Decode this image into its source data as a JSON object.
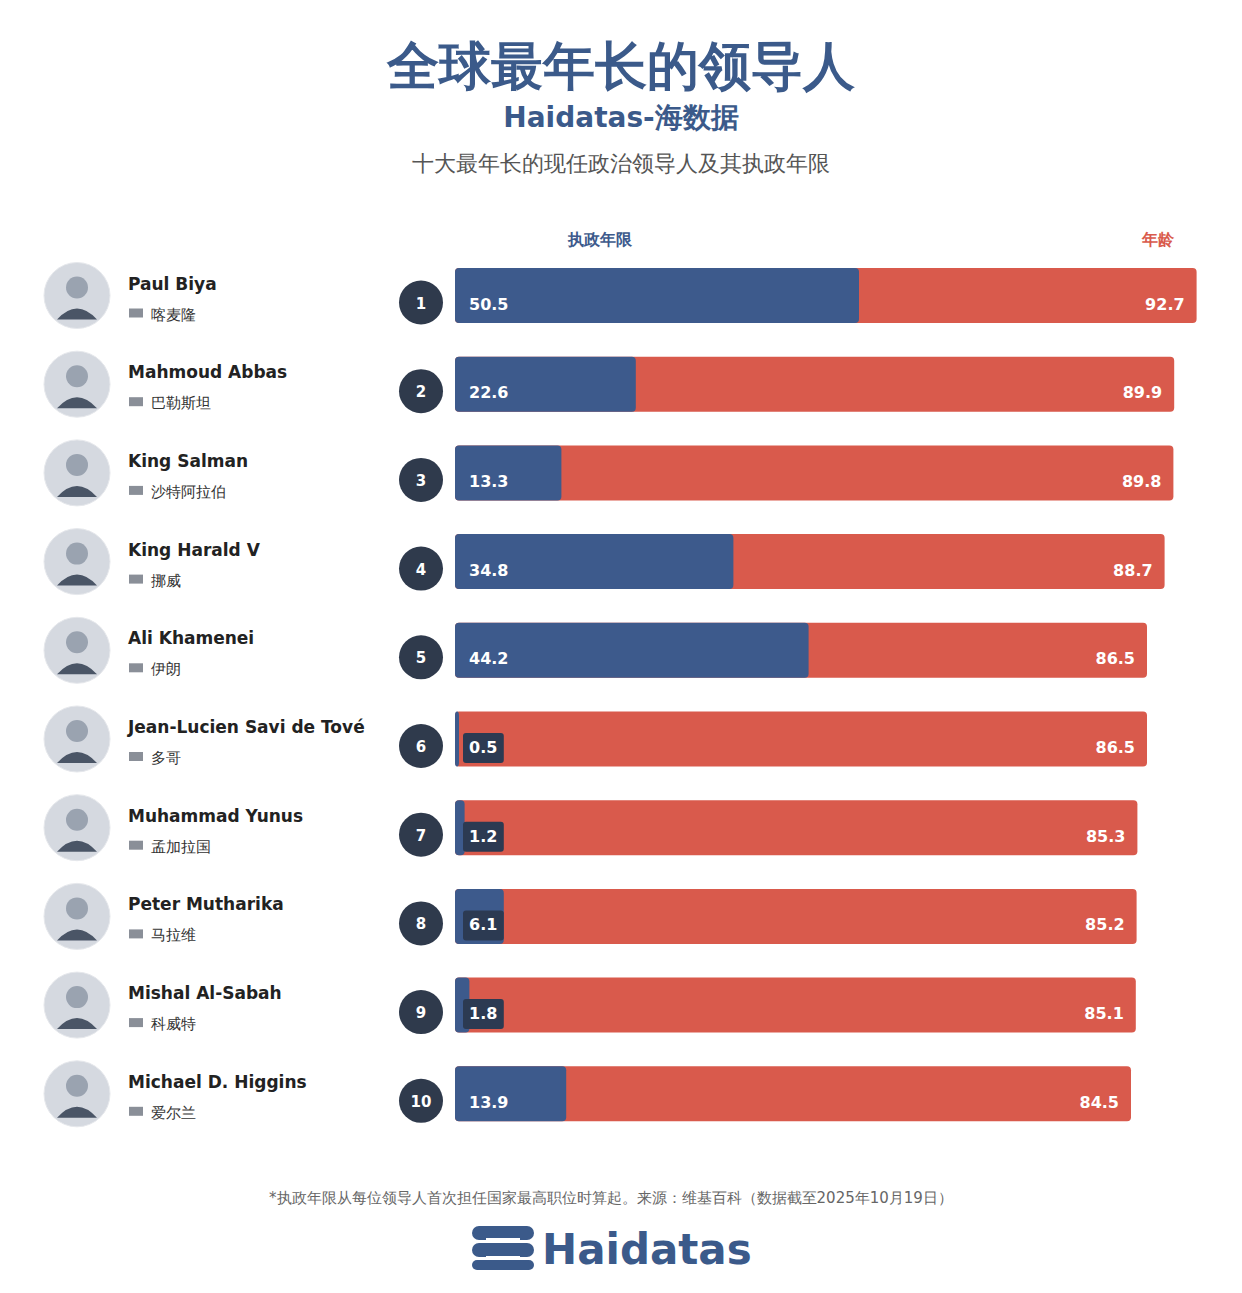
{
  "chart_data": {
    "type": "bar",
    "orientation": "horizontal",
    "title": "全球最年长的领导人",
    "subtitle": "Haidatas-海数据",
    "description": "十大最年长的现任政治领导人及其执政年限",
    "footnote": "*执政年限从每位领导人首次担任国家最高职位时算起。来源：维基百科（数据截至2025年10月19日）",
    "brand": "Haidatas",
    "categories": [
      "Paul Biya",
      "Mahmoud Abbas",
      "King Salman",
      "King Harald V",
      "Ali Khamenei",
      "Jean-Lucien Savi de Tové",
      "Muhammad Yunus",
      "Peter Mutharika",
      "Mishal Al-Sabah",
      "Michael D. Higgins"
    ],
    "countries": [
      "喀麦隆",
      "巴勒斯坦",
      "沙特阿拉伯",
      "挪威",
      "伊朗",
      "多哥",
      "孟加拉国",
      "马拉维",
      "科威特",
      "爱尔兰"
    ],
    "ranks": [
      1,
      2,
      3,
      4,
      5,
      6,
      7,
      8,
      9,
      10
    ],
    "series": [
      {
        "name": "执政年限",
        "color": "#3d5a8c",
        "values": [
          50.5,
          22.6,
          13.3,
          34.8,
          44.2,
          0.5,
          1.2,
          6.1,
          1.8,
          13.9
        ]
      },
      {
        "name": "年龄",
        "color": "#d95a4c",
        "values": [
          92.7,
          89.9,
          89.8,
          88.7,
          86.5,
          86.5,
          85.3,
          85.2,
          85.1,
          84.5
        ]
      }
    ],
    "xlim": [
      0,
      95
    ],
    "tick_labels": false,
    "grid": false,
    "data_labels": true
  }
}
